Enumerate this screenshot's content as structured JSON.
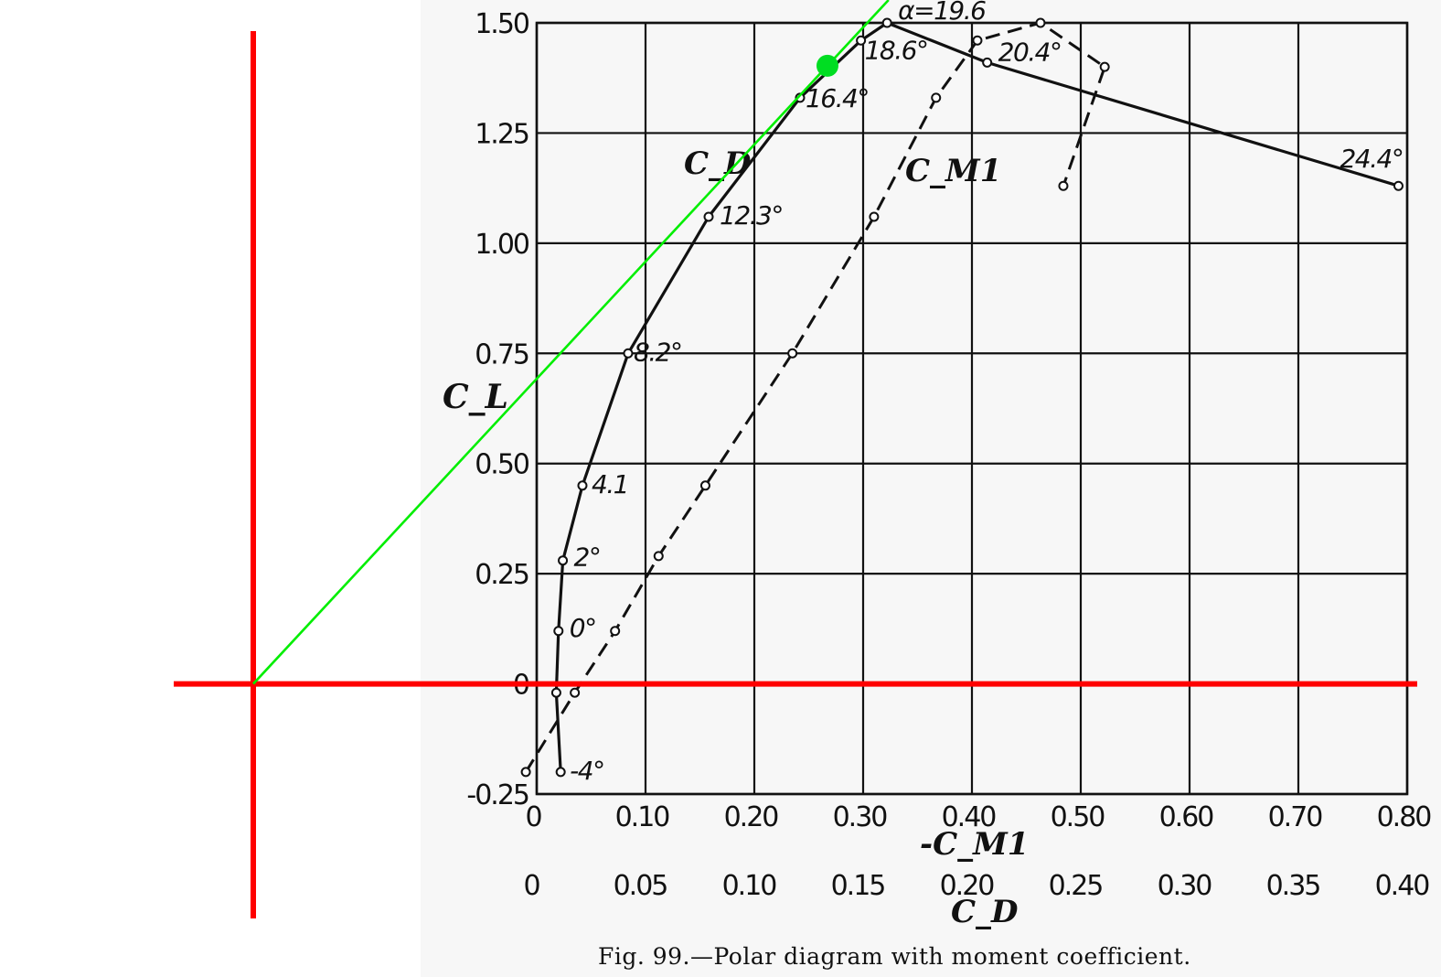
{
  "chart_data": {
    "type": "line",
    "caption": "Fig. 99.—Polar diagram with moment coefficient.",
    "y_axis": {
      "label": "C_L",
      "ticks": [
        "-0.25",
        "0",
        "0.25",
        "0.50",
        "0.75",
        "1.00",
        "1.25",
        "1.50"
      ],
      "ylim": [
        -0.25,
        1.5
      ]
    },
    "x_axis_moment": {
      "label": "-C_M1",
      "ticks": [
        "0",
        "0.10",
        "0.20",
        "0.30",
        "0.40",
        "0.50",
        "0.60",
        "0.70",
        "0.80"
      ],
      "xlim": [
        0,
        0.8
      ]
    },
    "x_axis_drag": {
      "label": "C_D",
      "ticks": [
        "0",
        "0.05",
        "0.10",
        "0.15",
        "0.20",
        "0.25",
        "0.30",
        "0.35",
        "0.40"
      ],
      "xlim": [
        0,
        0.4
      ]
    },
    "grid": true,
    "series": [
      {
        "name": "C_D",
        "x_axis": "C_D",
        "style": "solid",
        "points": [
          {
            "x": 0.011,
            "y": -0.2,
            "label": "-4°"
          },
          {
            "x": 0.009,
            "y": -0.02,
            "label": ""
          },
          {
            "x": 0.01,
            "y": 0.12,
            "label": "0°"
          },
          {
            "x": 0.012,
            "y": 0.28,
            "label": "2°"
          },
          {
            "x": 0.021,
            "y": 0.45,
            "label": "4.1"
          },
          {
            "x": 0.042,
            "y": 0.75,
            "label": "8.2°"
          },
          {
            "x": 0.079,
            "y": 1.06,
            "label": "12.3°"
          },
          {
            "x": 0.121,
            "y": 1.33,
            "label": "16.4°"
          },
          {
            "x": 0.149,
            "y": 1.46,
            "label": "18.6°"
          },
          {
            "x": 0.161,
            "y": 1.5,
            "label": "α=19.6"
          },
          {
            "x": 0.207,
            "y": 1.41,
            "label": "20.4°"
          },
          {
            "x": 0.396,
            "y": 1.13,
            "label": "24.4°"
          }
        ]
      },
      {
        "name": "C_M1",
        "x_axis": "-C_M1",
        "style": "dashed",
        "points": [
          {
            "x": -0.01,
            "y": -0.2
          },
          {
            "x": 0.035,
            "y": -0.02
          },
          {
            "x": 0.072,
            "y": 0.12
          },
          {
            "x": 0.112,
            "y": 0.29
          },
          {
            "x": 0.155,
            "y": 0.45
          },
          {
            "x": 0.235,
            "y": 0.75
          },
          {
            "x": 0.31,
            "y": 1.06
          },
          {
            "x": 0.367,
            "y": 1.33
          },
          {
            "x": 0.405,
            "y": 1.46
          },
          {
            "x": 0.463,
            "y": 1.5
          },
          {
            "x": 0.522,
            "y": 1.4
          },
          {
            "x": 0.484,
            "y": 1.13
          }
        ]
      }
    ],
    "overlay": {
      "axes_color": "#ff0000",
      "tangent_color": "#00ee00",
      "point_color": "#00dd22"
    }
  }
}
